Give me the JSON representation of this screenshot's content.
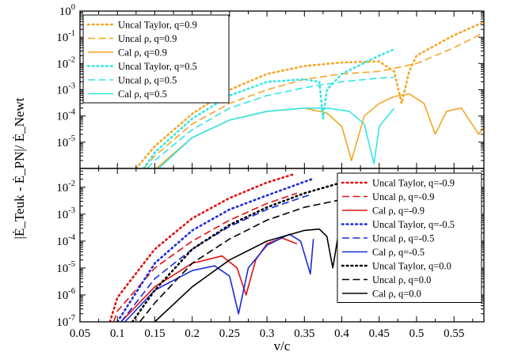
{
  "chart_data": [
    {
      "panel": "top",
      "type": "line",
      "xlabel": "",
      "ylabel": "|Ė_Teuk - Ė_PN|/ Ė_Newt",
      "xlim": [
        0.05,
        0.59
      ],
      "ylim_log10": [
        -6,
        0
      ],
      "yscale": "log",
      "ytick_labels": [
        "10^-5",
        "10^-4",
        "10^-3",
        "10^-2",
        "10^-1",
        "10^0"
      ],
      "legend_position": "top-left",
      "series": [
        {
          "name": "Uncal Taylor, q=0.9",
          "color": "#f5a623",
          "style": "dotted",
          "x": [
            0.125,
            0.15,
            0.2,
            0.25,
            0.3,
            0.35,
            0.4,
            0.45,
            0.47,
            0.48,
            0.49,
            0.5,
            0.55,
            0.59
          ],
          "y": [
            1e-06,
            7e-06,
            0.00012,
            0.001,
            0.004,
            0.008,
            0.011,
            0.012,
            0.005,
            0.0003,
            0.005,
            0.02,
            0.12,
            0.38
          ]
        },
        {
          "name": "Uncal ρ, q=0.9",
          "color": "#f5a623",
          "style": "dashed",
          "x": [
            0.135,
            0.15,
            0.2,
            0.25,
            0.3,
            0.35,
            0.4,
            0.45,
            0.5,
            0.55,
            0.59
          ],
          "y": [
            1e-06,
            3e-06,
            5e-05,
            0.0003,
            0.001,
            0.0025,
            0.004,
            0.005,
            0.01,
            0.04,
            0.15
          ]
        },
        {
          "name": "Cal ρ, q=0.9",
          "color": "#f5a623",
          "style": "solid",
          "x": [
            0.152,
            0.2,
            0.25,
            0.3,
            0.35,
            0.38,
            0.4,
            0.413,
            0.43,
            0.45,
            0.47,
            0.49,
            0.51,
            0.525,
            0.54,
            0.56,
            0.583,
            0.59
          ],
          "y": [
            1e-06,
            1.5e-05,
            7e-05,
            0.00015,
            0.0002,
            0.00013,
            4e-05,
            2e-06,
            0.0001,
            0.0003,
            0.00055,
            0.0007,
            0.0003,
            2e-05,
            0.00015,
            0.0002,
            2e-05,
            4e-05
          ]
        },
        {
          "name": "Uncal Taylor, q=0.5",
          "color": "#33e6e6",
          "style": "dotted",
          "x": [
            0.135,
            0.15,
            0.2,
            0.25,
            0.3,
            0.35,
            0.37,
            0.375,
            0.38,
            0.4,
            0.45,
            0.47
          ],
          "y": [
            1e-06,
            4e-06,
            8e-05,
            0.0006,
            0.002,
            0.0025,
            0.002,
            8e-05,
            0.001,
            0.004,
            0.02,
            0.035
          ]
        },
        {
          "name": "Uncal ρ, q=0.5",
          "color": "#33e6e6",
          "style": "dashed",
          "x": [
            0.14,
            0.15,
            0.2,
            0.25,
            0.3,
            0.35,
            0.4,
            0.45,
            0.47
          ],
          "y": [
            1e-06,
            2e-06,
            3e-05,
            0.0002,
            0.0006,
            0.0012,
            0.002,
            0.0028,
            0.003
          ]
        },
        {
          "name": "Cal ρ, q=0.5",
          "color": "#33e6e6",
          "style": "solid",
          "x": [
            0.155,
            0.2,
            0.25,
            0.3,
            0.35,
            0.38,
            0.41,
            0.43,
            0.443,
            0.45,
            0.47
          ],
          "y": [
            1e-06,
            1.5e-05,
            7e-05,
            0.00015,
            0.0002,
            0.0002,
            0.00015,
            5e-05,
            1.5e-06,
            4e-05,
            0.0002
          ]
        }
      ]
    },
    {
      "panel": "bottom",
      "type": "line",
      "xlabel": "v/c",
      "ylabel": "|Ė_Teuk - Ė_PN|/ Ė_Newt",
      "xlim": [
        0.05,
        0.59
      ],
      "ylim_log10": [
        -7,
        -1.3
      ],
      "yscale": "log",
      "xtick_labels": [
        "0.05",
        "0.1",
        "0.15",
        "0.2",
        "0.25",
        "0.3",
        "0.35",
        "0.4",
        "0.45",
        "0.5",
        "0.55"
      ],
      "ytick_labels": [
        "10^-7",
        "10^-6",
        "10^-5",
        "10^-4",
        "10^-3",
        "10^-2"
      ],
      "legend_position": "top-right",
      "series": [
        {
          "name": "Uncal Taylor, q=-0.9",
          "color": "#e01010",
          "style": "dotted",
          "x": [
            0.09,
            0.1,
            0.15,
            0.2,
            0.25,
            0.3,
            0.335
          ],
          "y": [
            1e-07,
            8e-07,
            5e-05,
            0.0007,
            0.004,
            0.015,
            0.03
          ]
        },
        {
          "name": "Uncal ρ, q=-0.9",
          "color": "#e01010",
          "style": "dashed",
          "x": [
            0.095,
            0.1,
            0.15,
            0.2,
            0.25,
            0.3,
            0.34
          ],
          "y": [
            1e-07,
            2.5e-07,
            1e-05,
            0.0001,
            0.0006,
            0.0025,
            0.006
          ]
        },
        {
          "name": "Cal ρ, q=-0.9",
          "color": "#e01010",
          "style": "solid",
          "x": [
            0.105,
            0.15,
            0.2,
            0.24,
            0.26,
            0.272,
            0.285,
            0.3,
            0.32,
            0.34
          ],
          "y": [
            1e-07,
            2e-06,
            1.5e-05,
            2.8e-05,
            1e-05,
            1e-06,
            2e-05,
            8e-05,
            0.00013,
            8e-05
          ]
        },
        {
          "name": "Uncal Taylor, q=-0.5",
          "color": "#1a2bd9",
          "style": "dotted",
          "x": [
            0.1,
            0.15,
            0.2,
            0.25,
            0.3,
            0.35,
            0.36
          ],
          "y": [
            1e-07,
            1.5e-05,
            0.00025,
            0.0015,
            0.005,
            0.016,
            0.02
          ]
        },
        {
          "name": "Uncal ρ, q=-0.5",
          "color": "#1a2bd9",
          "style": "dashed",
          "x": [
            0.105,
            0.15,
            0.2,
            0.25,
            0.3,
            0.35,
            0.36
          ],
          "y": [
            1e-07,
            4e-06,
            5e-05,
            0.00035,
            0.0015,
            0.0045,
            0.0055
          ]
        },
        {
          "name": "Cal ρ, q=-0.5",
          "color": "#1a2bd9",
          "style": "solid",
          "x": [
            0.11,
            0.15,
            0.2,
            0.23,
            0.25,
            0.262,
            0.275,
            0.3,
            0.33,
            0.345,
            0.358,
            0.362
          ],
          "y": [
            1e-07,
            1.5e-06,
            8e-06,
            1.2e-05,
            5e-06,
            2e-07,
            1e-05,
            7e-05,
            0.00018,
            0.0001,
            6e-06,
            0.00012
          ]
        },
        {
          "name": "Uncal Taylor, q=0.0",
          "color": "#000000",
          "style": "dotted",
          "x": [
            0.12,
            0.15,
            0.2,
            0.25,
            0.3,
            0.35,
            0.4,
            0.45
          ],
          "y": [
            1e-07,
            1.5e-06,
            5e-05,
            0.0004,
            0.0018,
            0.006,
            0.015,
            0.03
          ]
        },
        {
          "name": "Uncal ρ, q=0.0",
          "color": "#000000",
          "style": "dashed",
          "x": [
            0.13,
            0.15,
            0.2,
            0.25,
            0.3,
            0.35,
            0.4,
            0.45
          ],
          "y": [
            1e-07,
            5e-07,
            1.5e-05,
            0.00012,
            0.0006,
            0.0018,
            0.0035,
            0.0055
          ]
        },
        {
          "name": "Cal ρ, q=0.0",
          "color": "#000000",
          "style": "solid",
          "x": [
            0.15,
            0.2,
            0.25,
            0.3,
            0.35,
            0.37,
            0.38,
            0.388,
            0.395,
            0.405
          ],
          "y": [
            1e-07,
            2e-06,
            2e-05,
            0.0001,
            0.00025,
            0.00028,
            0.00015,
            1e-05,
            0.00015,
            0.0005
          ]
        }
      ]
    }
  ]
}
